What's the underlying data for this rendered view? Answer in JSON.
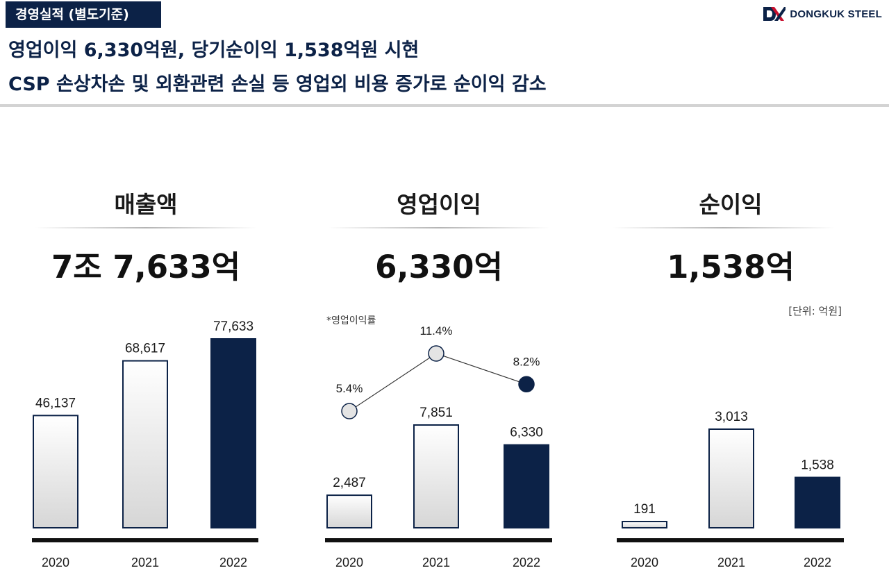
{
  "header": {
    "section_tag": "경영실적 (별도기준)",
    "logo_text": "DONGKUK STEEL",
    "headline_1": "영업이익 6,330억원, 당기순이익 1,538억원 시현",
    "headline_2": "CSP 손상차손 및 외환관련 손실 등 영업외 비용 증가로 순이익 감소"
  },
  "unit": "[단위: 억원]",
  "margin_label": "*영업이익률",
  "colors": {
    "navy": "#0c2247",
    "bar_light_top": "#ffffff",
    "bar_light_bottom": "#d9d9d9"
  },
  "panels": [
    {
      "title": "매출액",
      "total": "7조 7,633억"
    },
    {
      "title": "영업이익",
      "total": "6,330억"
    },
    {
      "title": "순이익",
      "total": "1,538억"
    }
  ],
  "chart_data": [
    {
      "type": "bar",
      "title": "매출액",
      "categories": [
        "2020",
        "2021",
        "2022"
      ],
      "values": [
        46137,
        68617,
        77633
      ],
      "labels": [
        "46,137",
        "68,617",
        "77,633"
      ],
      "highlight": "2022"
    },
    {
      "type": "bar",
      "title": "영업이익",
      "categories": [
        "2020",
        "2021",
        "2022"
      ],
      "values": [
        2487,
        7851,
        6330
      ],
      "labels": [
        "2,487",
        "7,851",
        "6,330"
      ],
      "highlight": "2022",
      "overlay": {
        "type": "line",
        "name": "*영업이익률",
        "values": [
          5.4,
          11.4,
          8.2
        ],
        "labels": [
          "5.4%",
          "11.4%",
          "8.2%"
        ]
      }
    },
    {
      "type": "bar",
      "title": "순이익",
      "categories": [
        "2020",
        "2021",
        "2022"
      ],
      "values": [
        191,
        3013,
        1538
      ],
      "labels": [
        "191",
        "3,013",
        "1,538"
      ],
      "highlight": "2022"
    }
  ]
}
